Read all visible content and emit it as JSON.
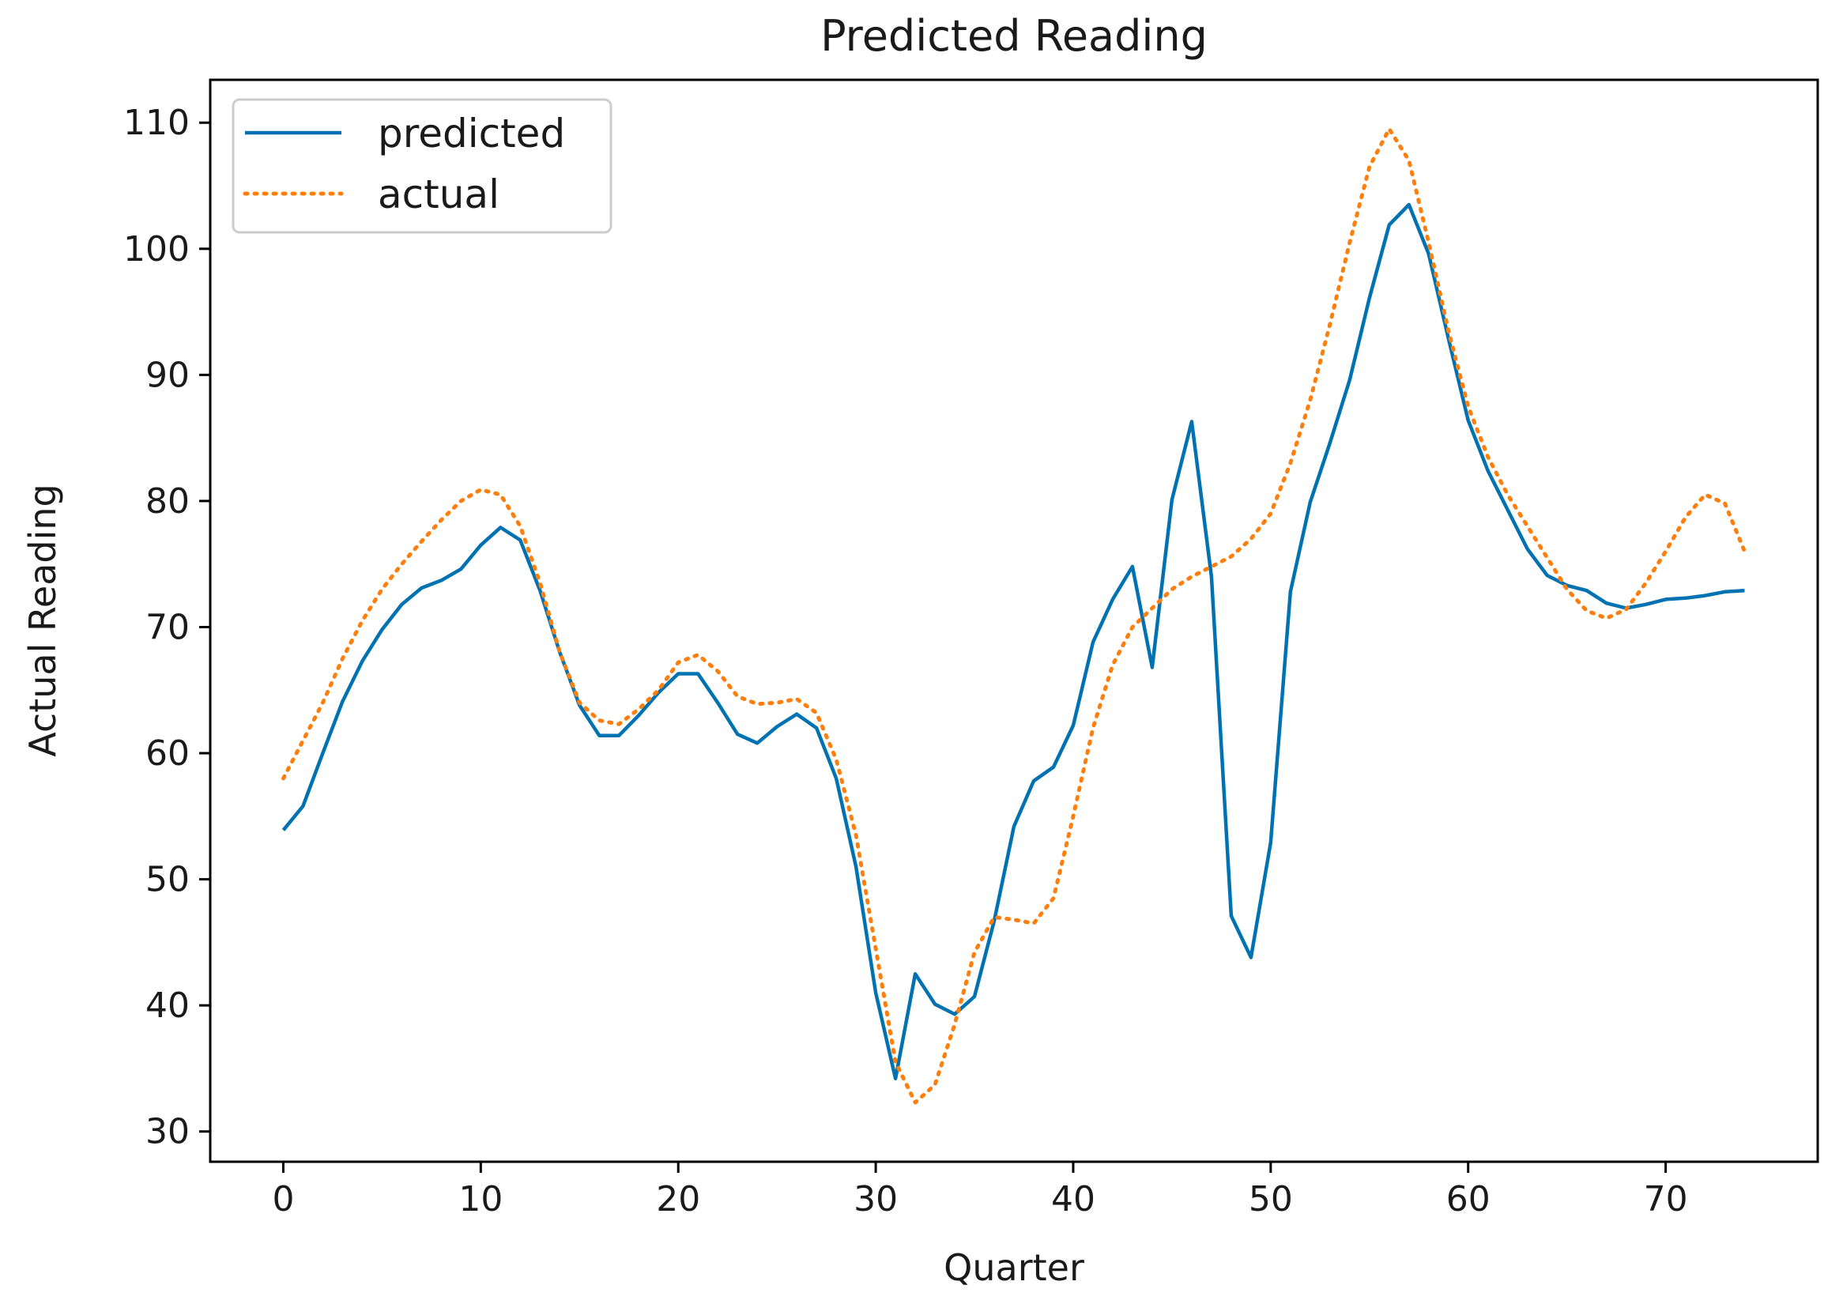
{
  "chart_data": {
    "type": "line",
    "title": "Predicted Reading",
    "xlabel": "Quarter",
    "ylabel": "Actual Reading",
    "xlim": [
      -3.7,
      77.7
    ],
    "ylim": [
      27.6,
      113.4
    ],
    "xticks": [
      0,
      10,
      20,
      30,
      40,
      50,
      60,
      70
    ],
    "yticks": [
      30,
      40,
      50,
      60,
      70,
      80,
      90,
      100,
      110
    ],
    "grid": false,
    "legend_position": "top-left",
    "x": [
      0,
      1,
      2,
      3,
      4,
      5,
      6,
      7,
      8,
      9,
      10,
      11,
      12,
      13,
      14,
      15,
      16,
      17,
      18,
      19,
      20,
      21,
      22,
      23,
      24,
      25,
      26,
      27,
      28,
      29,
      30,
      31,
      32,
      33,
      34,
      35,
      36,
      37,
      38,
      39,
      40,
      41,
      42,
      43,
      44,
      45,
      46,
      47,
      48,
      49,
      50,
      51,
      52,
      53,
      54,
      55,
      56,
      57,
      58,
      59,
      60,
      61,
      62,
      63,
      64,
      65,
      66,
      67,
      68,
      69,
      70,
      71,
      72,
      73,
      74
    ],
    "series": [
      {
        "name": "predicted",
        "color": "#0072B2",
        "style": "solid",
        "values": [
          53.9,
          55.8,
          60.0,
          64.1,
          67.3,
          69.8,
          71.8,
          73.1,
          73.7,
          74.6,
          76.5,
          77.9,
          76.9,
          72.9,
          68.0,
          63.8,
          61.4,
          61.4,
          63.0,
          64.8,
          66.3,
          66.3,
          64.0,
          61.5,
          60.8,
          62.1,
          63.1,
          62.0,
          58.0,
          51.0,
          41.0,
          34.2,
          42.5,
          40.1,
          39.3,
          40.7,
          46.7,
          54.2,
          57.8,
          58.9,
          62.2,
          68.8,
          72.2,
          74.8,
          66.8,
          80.1,
          86.3,
          74.0,
          47.1,
          43.8,
          52.9,
          72.8,
          79.9,
          84.6,
          89.6,
          96.1,
          101.9,
          103.5,
          99.6,
          92.9,
          86.4,
          82.4,
          79.3,
          76.2,
          74.1,
          73.3,
          72.9,
          71.9,
          71.5,
          71.8,
          72.2,
          72.3,
          72.5,
          72.8,
          72.9
        ]
      },
      {
        "name": "actual",
        "color": "#FF7F0E",
        "style": "dotted",
        "values": [
          58.0,
          61.0,
          64.0,
          67.5,
          70.5,
          73.0,
          75.0,
          76.8,
          78.5,
          80.0,
          80.9,
          80.5,
          78.0,
          73.5,
          68.0,
          64.0,
          62.6,
          62.3,
          63.5,
          65.0,
          67.2,
          67.8,
          66.5,
          64.5,
          63.9,
          64.0,
          64.3,
          63.2,
          59.5,
          53.5,
          44.5,
          35.5,
          32.3,
          33.7,
          38.5,
          44.2,
          47.0,
          46.8,
          46.5,
          48.5,
          55.0,
          62.0,
          67.0,
          70.0,
          71.5,
          73.0,
          74.0,
          74.8,
          75.6,
          77.0,
          79.0,
          83.0,
          88.0,
          94.0,
          100.5,
          106.5,
          109.5,
          107.0,
          100.5,
          93.5,
          87.5,
          83.5,
          80.5,
          78.0,
          75.5,
          73.0,
          71.3,
          70.7,
          71.4,
          73.5,
          76.0,
          78.7,
          80.5,
          79.8,
          76.0
        ]
      }
    ]
  }
}
